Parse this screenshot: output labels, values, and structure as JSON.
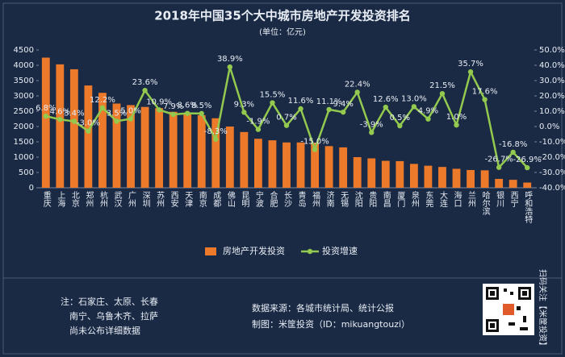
{
  "chart_data": {
    "type": "bar",
    "title": "2018年中国35个大中城市房地产开发投资排名",
    "subtitle": "(单位：亿元)",
    "categories": [
      "重庆",
      "上海",
      "北京",
      "郑州",
      "杭州",
      "武汉",
      "广州",
      "深圳",
      "苏州",
      "西安",
      "天津",
      "南京",
      "成都",
      "佛山",
      "昆明",
      "宁波",
      "合肥",
      "长沙",
      "青岛",
      "福州",
      "济南",
      "无锡",
      "沈阳",
      "贵阳",
      "南昌",
      "厦门",
      "泉州",
      "东莞",
      "大连",
      "海口",
      "兰州",
      "哈尔滨",
      "银川",
      "西宁",
      "呼和浩特"
    ],
    "series": [
      {
        "name": "房地产开发投资",
        "color": "#ec7a2a",
        "values": [
          4250,
          4030,
          3870,
          3340,
          3100,
          2750,
          2700,
          2640,
          2600,
          2480,
          2400,
          2370,
          2270,
          2000,
          1820,
          1600,
          1550,
          1480,
          1480,
          1470,
          1360,
          1320,
          1000,
          960,
          880,
          870,
          780,
          720,
          680,
          620,
          580,
          570,
          290,
          260,
          170
        ]
      },
      {
        "name": "投资增速",
        "color": "#93c94e",
        "type": "line",
        "axis": "y2",
        "values": [
          6.8,
          4.6,
          3.4,
          -3.0,
          12.2,
          3.5,
          5.0,
          23.6,
          10.9,
          7.9,
          8.6,
          8.5,
          -8.3,
          38.9,
          9.3,
          -1.9,
          15.5,
          0.7,
          11.6,
          -15.0,
          11.1,
          9.4,
          22.4,
          -3.9,
          12.6,
          0.5,
          13.0,
          4.9,
          21.5,
          1.0,
          35.7,
          17.6,
          -26.7,
          -16.8,
          -26.9
        ],
        "value_labels": [
          "6.8%",
          "4.6%",
          "3.4%",
          "-3.0%",
          "12.2%",
          "3.5%",
          "5.0%",
          "23.6%",
          "10.9%",
          "7.9%",
          "8.6%",
          "8.5%",
          "-8.3%",
          "38.9%",
          "9.3%",
          "-1.9%",
          "15.5%",
          "0.7%",
          "11.6%",
          "-15.0%",
          "11.1%",
          "9.4%",
          "22.4%",
          "-3.9%",
          "12.6%",
          "0.5%",
          "13.0%",
          "4.9%",
          "21.5%",
          "1.0%",
          "35.7%",
          "17.6%",
          "-26.7%",
          "-16.8%",
          "-26.9%"
        ]
      }
    ],
    "ylim": [
      0,
      4500
    ],
    "yticks": [
      0,
      500,
      1000,
      1500,
      2000,
      2500,
      3000,
      3500,
      4000,
      4500
    ],
    "y2lim": [
      -40,
      50
    ],
    "y2ticks": [
      {
        "value": -40,
        "label": "-40.0%"
      },
      {
        "value": -30,
        "label": "-30.0%"
      },
      {
        "value": -20,
        "label": "-20.0%"
      },
      {
        "value": -10,
        "label": "-10.0%"
      },
      {
        "value": 0,
        "label": "0.0%"
      },
      {
        "value": 10,
        "label": "10.0%"
      },
      {
        "value": 20,
        "label": "20.0%"
      },
      {
        "value": 30,
        "label": "30.0%"
      },
      {
        "value": 40,
        "label": "40.0%"
      },
      {
        "value": 50,
        "label": "50.0%"
      }
    ],
    "grid": false,
    "legend": "bottom"
  },
  "footer": {
    "notes": [
      "注：石家庄、太原、长春",
      "南宁、乌鲁木齐、拉萨",
      "尚未公布详细数据"
    ],
    "source": [
      "数据来源：各城市统计局、统计公报",
      "制图：米筐投资（ID：mikuangtouzi）"
    ],
    "qr_caption": "扫码关注【米筐投资】"
  }
}
